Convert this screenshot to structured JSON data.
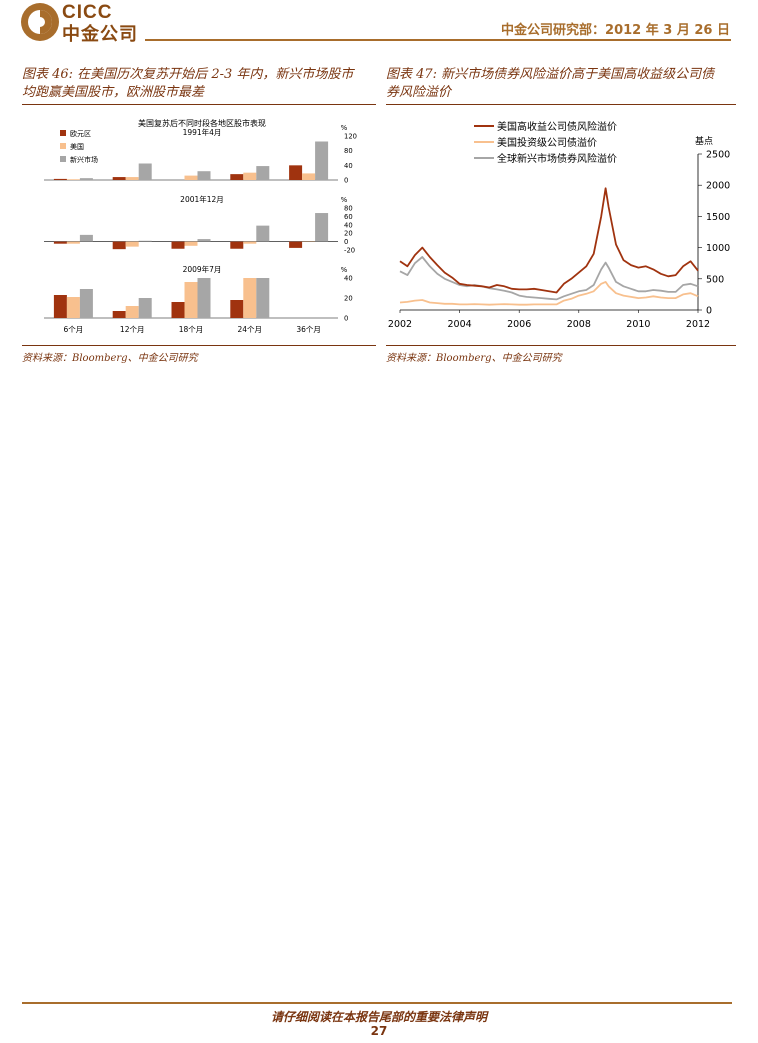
{
  "header": {
    "logo_en": "CICC",
    "logo_cn": "中金公司",
    "right_text": "中金公司研究部：2012 年 3 月 26 日"
  },
  "figure46": {
    "title_line1": "图表 46: 在美国历次复苏开始后 2-3 年内，新兴市场股市",
    "title_line2": "均跑赢美国股市，欧洲股市最差",
    "source": "资料来源：Bloomberg、中金公司研究",
    "chart_heading": "美国复苏后不同时段各地区股市表现",
    "chart_data": [
      {
        "type": "bar",
        "title": "1991年4月",
        "categories": [
          "6个月",
          "12个月",
          "18个月",
          "24个月",
          "36个月"
        ],
        "series": [
          {
            "name": "欧元区",
            "values": [
              3,
              8,
              0,
              16,
              40
            ]
          },
          {
            "name": "美国",
            "values": [
              2,
              8,
              12,
              20,
              18
            ]
          },
          {
            "name": "新兴市场",
            "values": [
              5,
              45,
              24,
              38,
              105
            ]
          }
        ],
        "ylim": [
          0,
          120
        ],
        "yticks": [
          0,
          40,
          80,
          120
        ],
        "ylabel": "%"
      },
      {
        "type": "bar",
        "title": "2001年12月",
        "categories": [
          "6个月",
          "12个月",
          "18个月",
          "24个月",
          "36个月"
        ],
        "series": [
          {
            "name": "欧元区",
            "values": [
              -5,
              -18,
              -17,
              -17,
              -15
            ]
          },
          {
            "name": "美国",
            "values": [
              -5,
              -12,
              -10,
              -5,
              1
            ]
          },
          {
            "name": "新兴市场",
            "values": [
              16,
              2,
              6,
              38,
              68
            ]
          }
        ],
        "ylim": [
          -20,
          80
        ],
        "yticks": [
          -20,
          0,
          20,
          40,
          60,
          80
        ],
        "ylabel": "%"
      },
      {
        "type": "bar",
        "title": "2009年7月",
        "categories": [
          "6个月",
          "12个月",
          "18个月",
          "24个月",
          "36个月"
        ],
        "series": [
          {
            "name": "欧元区",
            "values": [
              23,
              7,
              16,
              18,
              0
            ]
          },
          {
            "name": "美国",
            "values": [
              21,
              12,
              36,
              40,
              0
            ]
          },
          {
            "name": "新兴市场",
            "values": [
              29,
              20,
              40,
              40,
              0
            ]
          }
        ],
        "ylim": [
          0,
          40
        ],
        "yticks": [
          0,
          20,
          40
        ],
        "ylabel": "%"
      }
    ],
    "legend": [
      "欧元区",
      "美国",
      "新兴市场"
    ],
    "colors": {
      "eurozone": "#a0330f",
      "us": "#f8c08e",
      "em": "#a6a6a6"
    }
  },
  "figure47": {
    "title_line1": "图表 47: 新兴市场债券风险溢价高于美国高收益级公司债",
    "title_line2": "券风险溢价",
    "source": "资料来源：Bloomberg、中金公司研究",
    "chart_data": {
      "type": "line",
      "x": [
        2002,
        2002.25,
        2002.5,
        2002.75,
        2003,
        2003.25,
        2003.5,
        2003.75,
        2004,
        2004.25,
        2004.5,
        2004.75,
        2005,
        2005.25,
        2005.5,
        2005.75,
        2006,
        2006.25,
        2006.5,
        2006.75,
        2007,
        2007.25,
        2007.5,
        2007.75,
        2008,
        2008.25,
        2008.5,
        2008.75,
        2008.9,
        2009,
        2009.25,
        2009.5,
        2009.75,
        2010,
        2010.25,
        2010.5,
        2010.75,
        2011,
        2011.25,
        2011.5,
        2011.75,
        2012
      ],
      "series": [
        {
          "name": "美国高收益公司债风险溢价",
          "color": "#a0330f",
          "values": [
            780,
            700,
            880,
            1000,
            850,
            720,
            600,
            520,
            420,
            400,
            390,
            380,
            360,
            400,
            380,
            340,
            330,
            330,
            340,
            320,
            300,
            280,
            420,
            500,
            600,
            700,
            900,
            1500,
            1950,
            1650,
            1050,
            800,
            720,
            680,
            700,
            650,
            580,
            540,
            560,
            700,
            780,
            630
          ]
        },
        {
          "name": "美国投资级公司债溢价",
          "color": "#f8c08e",
          "values": [
            120,
            130,
            150,
            160,
            120,
            110,
            100,
            100,
            90,
            90,
            95,
            90,
            85,
            90,
            95,
            90,
            85,
            85,
            90,
            90,
            90,
            90,
            150,
            180,
            230,
            260,
            300,
            420,
            450,
            380,
            270,
            230,
            210,
            190,
            200,
            220,
            200,
            190,
            190,
            250,
            270,
            220
          ]
        },
        {
          "name": "全球新兴市场债券风险溢价",
          "color": "#a6a6a6",
          "values": [
            620,
            560,
            750,
            850,
            700,
            580,
            500,
            450,
            400,
            380,
            400,
            380,
            350,
            330,
            310,
            280,
            230,
            210,
            200,
            190,
            180,
            170,
            220,
            260,
            300,
            320,
            400,
            650,
            760,
            680,
            450,
            380,
            340,
            300,
            300,
            320,
            310,
            290,
            290,
            400,
            420,
            380
          ]
        }
      ],
      "xlim": [
        2002,
        2012
      ],
      "xticks": [
        2002,
        2004,
        2006,
        2008,
        2010,
        2012
      ],
      "ylim": [
        0,
        2500
      ],
      "yticks": [
        0,
        500,
        1000,
        1500,
        2000,
        2500
      ],
      "ylabel": "基点"
    }
  },
  "footer": {
    "note": "请仔细阅读在本报告尾部的重要法律声明",
    "page_number": "27"
  }
}
